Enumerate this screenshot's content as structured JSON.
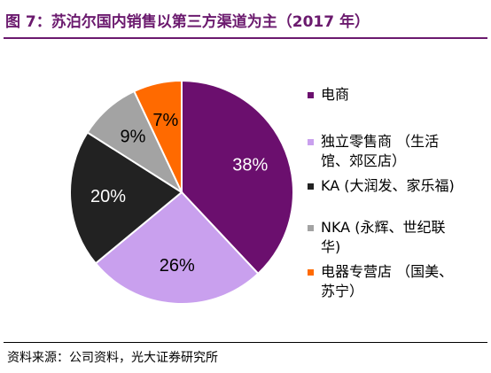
{
  "title": "图 7：苏泊尔国内销售以第三方渠道为主（2017 年）",
  "source": "资料来源：公司资料，光大证券研究所",
  "chart_data": {
    "type": "pie",
    "legend_position": "right",
    "slices": [
      {
        "label": "电商",
        "value": 38,
        "display": "38%",
        "color": "#6b0f6e",
        "text_color": "#ffffff"
      },
      {
        "label": "独立零售商（生活馆、郊区店）",
        "value": 26,
        "display": "26%",
        "color": "#c9a0ee",
        "text_color": "#000000"
      },
      {
        "label": "KA (大润发、家乐福)",
        "value": 20,
        "display": "20%",
        "color": "#222222",
        "text_color": "#ffffff"
      },
      {
        "label": "NKA (永辉、世纪联华)",
        "value": 9,
        "display": "9%",
        "color": "#a3a3a3",
        "text_color": "#000000"
      },
      {
        "label": "电器专营店（国美、苏宁）",
        "value": 7,
        "display": "7%",
        "color": "#ff6a00",
        "text_color": "#000000"
      }
    ],
    "legend": {
      "lines": [
        [
          "电商"
        ],
        [
          "独立零售商 （生活",
          "馆、郊区店）"
        ],
        [
          "KA (大润发、家乐福)"
        ],
        [
          "NKA (永辉、世纪联",
          "华)"
        ],
        [
          "电器专营店 （国美、",
          "苏宁）"
        ]
      ]
    }
  }
}
